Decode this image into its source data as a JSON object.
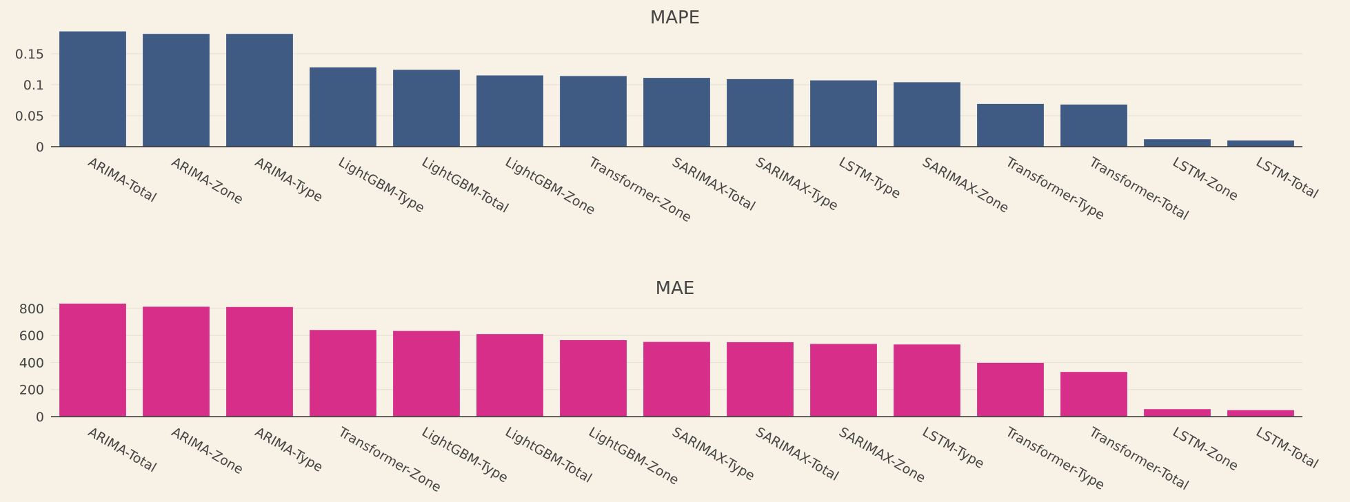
{
  "colors": {
    "background": "#f8f1e5",
    "mape_bar": "#3f5b84",
    "mae_bar": "#d62e89"
  },
  "chart_data": [
    {
      "type": "bar",
      "title": "MAPE",
      "categories": [
        "ARIMA-Total",
        "ARIMA-Zone",
        "ARIMA-Type",
        "LightGBM-Type",
        "LightGBM-Total",
        "LightGBM-Zone",
        "Transformer-Zone",
        "SARIMAX-Total",
        "SARIMAX-Type",
        "LSTM-Type",
        "SARIMAX-Zone",
        "Transformer-Type",
        "Transformer-Total",
        "LSTM-Zone",
        "LSTM-Total"
      ],
      "values": [
        0.186,
        0.182,
        0.182,
        0.128,
        0.124,
        0.115,
        0.114,
        0.111,
        0.109,
        0.107,
        0.104,
        0.069,
        0.068,
        0.012,
        0.01
      ],
      "ylim": [
        0,
        0.19
      ],
      "yticks": [
        0,
        0.05,
        0.1,
        0.15
      ],
      "ytick_labels": [
        "0",
        "0.05",
        "0.1",
        "0.15"
      ],
      "grid": true,
      "xlabel": "",
      "ylabel": ""
    },
    {
      "type": "bar",
      "title": "MAE",
      "categories": [
        "ARIMA-Total",
        "ARIMA-Zone",
        "ARIMA-Type",
        "Transformer-Zone",
        "LightGBM-Type",
        "LightGBM-Total",
        "LightGBM-Zone",
        "SARIMAX-Type",
        "SARIMAX-Total",
        "SARIMAX-Zone",
        "LSTM-Type",
        "Transformer-Type",
        "Transformer-Total",
        "LSTM-Zone",
        "LSTM-Total"
      ],
      "values": [
        835,
        812,
        810,
        640,
        633,
        610,
        565,
        552,
        550,
        537,
        533,
        397,
        330,
        55,
        48
      ],
      "ylim": [
        0,
        860
      ],
      "yticks": [
        0,
        200,
        400,
        600,
        800
      ],
      "ytick_labels": [
        "0",
        "200",
        "400",
        "600",
        "800"
      ],
      "grid": true,
      "xlabel": "",
      "ylabel": ""
    }
  ]
}
